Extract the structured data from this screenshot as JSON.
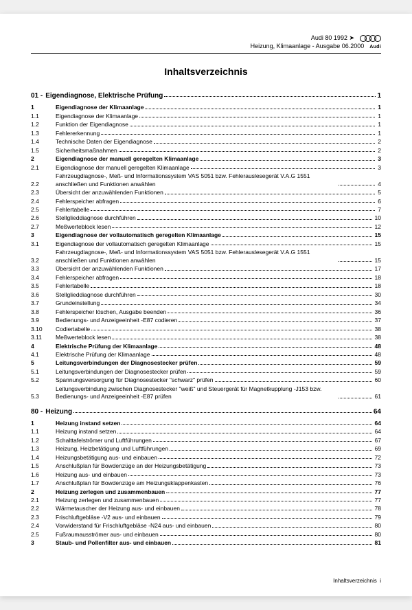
{
  "header": {
    "model": "Audi 80 1992 ➤",
    "subtitle": "Heizung, Klimaanlage - Ausgabe 06.2000",
    "brand": "Audi"
  },
  "title": "Inhaltsverzeichnis",
  "chapters": [
    {
      "num": "01 -",
      "title": "Eigendiagnose, Elektrische Prüfung",
      "page": "1",
      "rows": [
        {
          "n": "1",
          "t": "Eigendiagnose der Klimaanlage",
          "p": "1",
          "b": true
        },
        {
          "n": "1.1",
          "t": "Eigendiagnose der Klimaanlage",
          "p": "1"
        },
        {
          "n": "1.2",
          "t": "Funktion der Eigendiagnose",
          "p": "1"
        },
        {
          "n": "1.3",
          "t": "Fehlererkennung",
          "p": "1"
        },
        {
          "n": "1.4",
          "t": "Technische Daten der Eigendiagnose",
          "p": "2"
        },
        {
          "n": "1.5",
          "t": "Sicherheitsmaßnahmen",
          "p": "2"
        },
        {
          "n": "2",
          "t": "Eigendiagnose der manuell geregelten Klimaanlage",
          "p": "3",
          "b": true
        },
        {
          "n": "2.1",
          "t": "Eigendiagnose der manuell geregelten Klimaanlage",
          "p": "3"
        },
        {
          "n": "2.2",
          "t": "Fahrzeugdiagnose-, Meß- und Informationssystem VAS 5051 bzw. Fehlerauslesegerät V.A.G 1551 anschließen und Funktionen anwählen",
          "p": "4"
        },
        {
          "n": "2.3",
          "t": "Übersicht der anzuwählenden Funktionen",
          "p": "5"
        },
        {
          "n": "2.4",
          "t": "Fehlerspeicher abfragen",
          "p": "6"
        },
        {
          "n": "2.5",
          "t": "Fehlertabelle",
          "p": "7"
        },
        {
          "n": "2.6",
          "t": "Stellglieddiagnose durchführen",
          "p": "10"
        },
        {
          "n": "2.7",
          "t": "Meßwerteblock lesen",
          "p": "12"
        },
        {
          "n": "3",
          "t": "Eigendiagnose der vollautomatisch geregelten Klimaanlage",
          "p": "15",
          "b": true
        },
        {
          "n": "3.1",
          "t": "Eigendiagnose der vollautomatisch geregelten Klimaanlage",
          "p": "15"
        },
        {
          "n": "3.2",
          "t": "Fahrzeugdiagnose-, Meß- und Informationssystem VAS 5051 bzw. Fehlerauslesegerät V.A.G 1551 anschließen und Funktionen anwählen",
          "p": "15"
        },
        {
          "n": "3.3",
          "t": "Übersicht der anzuwählenden Funktionen",
          "p": "17"
        },
        {
          "n": "3.4",
          "t": "Fehlerspeicher abfragen",
          "p": "18"
        },
        {
          "n": "3.5",
          "t": "Fehlertabelle",
          "p": "18"
        },
        {
          "n": "3.6",
          "t": "Stellglieddiagnose durchführen",
          "p": "30"
        },
        {
          "n": "3.7",
          "t": "Grundeinstellung",
          "p": "34"
        },
        {
          "n": "3.8",
          "t": "Fehlerspeicher löschen, Ausgabe beenden",
          "p": "36"
        },
        {
          "n": "3.9",
          "t": "Bedienungs- und Anzeigeeinheit -E87 codieren",
          "p": "37"
        },
        {
          "n": "3.10",
          "t": "Codiertabelle",
          "p": "38"
        },
        {
          "n": "3.11",
          "t": "Meßwerteblock lesen",
          "p": "38"
        },
        {
          "n": "4",
          "t": "Elektrische Prüfung der Klimaanlage",
          "p": "48",
          "b": true
        },
        {
          "n": "4.1",
          "t": "Elektrische Prüfung der Klimaanlage",
          "p": "48"
        },
        {
          "n": "5",
          "t": "Leitungsverbindungen der Diagnosestecker prüfen",
          "p": "59",
          "b": true
        },
        {
          "n": "5.1",
          "t": "Leitungsverbindungen der Diagnosestecker prüfen",
          "p": "59"
        },
        {
          "n": "5.2",
          "t": "Spannungsversorgung für Diagnosestecker \"schwarz\" prüfen",
          "p": "60"
        },
        {
          "n": "5.3",
          "t": "Leitungsverbindung zwischen Diagnosestecker \"weiß\" und Steuergerät für Magnetkupplung -J153 bzw. Bedienungs- und Anzeigeeinheit -E87 prüfen",
          "p": "61"
        }
      ]
    },
    {
      "num": "80 -",
      "title": "Heizung",
      "page": "64",
      "rows": [
        {
          "n": "1",
          "t": "Heizung instand setzen",
          "p": "64",
          "b": true
        },
        {
          "n": "1.1",
          "t": "Heizung instand setzen",
          "p": "64"
        },
        {
          "n": "1.2",
          "t": "Schalttafelströmer und Luftführungen",
          "p": "67"
        },
        {
          "n": "1.3",
          "t": "Heizung, Heizbetätigung und Luftführungen",
          "p": "69"
        },
        {
          "n": "1.4",
          "t": "Heizungsbetätigung aus- und einbauen",
          "p": "72"
        },
        {
          "n": "1.5",
          "t": "Anschlußplan für Bowdenzüge an der Heizungsbetätigung",
          "p": "73"
        },
        {
          "n": "1.6",
          "t": "Heizung aus- und einbauen",
          "p": "73"
        },
        {
          "n": "1.7",
          "t": "Anschlußplan für Bowdenzüge am Heizungsklappenkasten",
          "p": "76"
        },
        {
          "n": "2",
          "t": "Heizung zerlegen und zusammenbauen",
          "p": "77",
          "b": true
        },
        {
          "n": "2.1",
          "t": "Heizung zerlegen und zusammenbauen",
          "p": "77"
        },
        {
          "n": "2.2",
          "t": "Wärmetauscher der Heizung aus- und einbauen",
          "p": "78"
        },
        {
          "n": "2.3",
          "t": "Frischluftgebläse -V2 aus- und einbauen",
          "p": "79"
        },
        {
          "n": "2.4",
          "t": "Vorwiderstand für Frischluftgebläse -N24 aus- und einbauen",
          "p": "80"
        },
        {
          "n": "2.5",
          "t": "Fußraumausströmer aus- und einbauen",
          "p": "80"
        },
        {
          "n": "3",
          "t": "Staub- und Pollenfilter aus- und einbauen",
          "p": "81",
          "b": true
        }
      ]
    }
  ],
  "footer": "Inhaltsverzeichnis",
  "footer_page": "i"
}
